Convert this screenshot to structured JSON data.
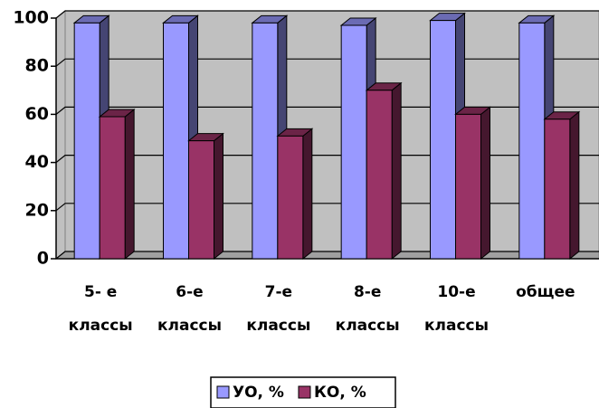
{
  "chart_data": {
    "type": "bar3d",
    "categories": [
      "5- е\nклассы",
      "6-е\nклассы",
      "7-е\nклассы",
      "8-е\nклассы",
      "10-е\nклассы",
      "общее"
    ],
    "series": [
      {
        "name": "УО, %",
        "color": "#9999ff",
        "values": [
          98,
          98,
          98,
          97,
          99,
          98
        ]
      },
      {
        "name": "КО, %",
        "color": "#993366",
        "values": [
          59,
          49,
          51,
          70,
          60,
          58
        ]
      }
    ],
    "ylim": [
      0,
      100
    ],
    "yticks": [
      0,
      20,
      40,
      60,
      80,
      100
    ],
    "grid": true,
    "legend": "bottom"
  }
}
